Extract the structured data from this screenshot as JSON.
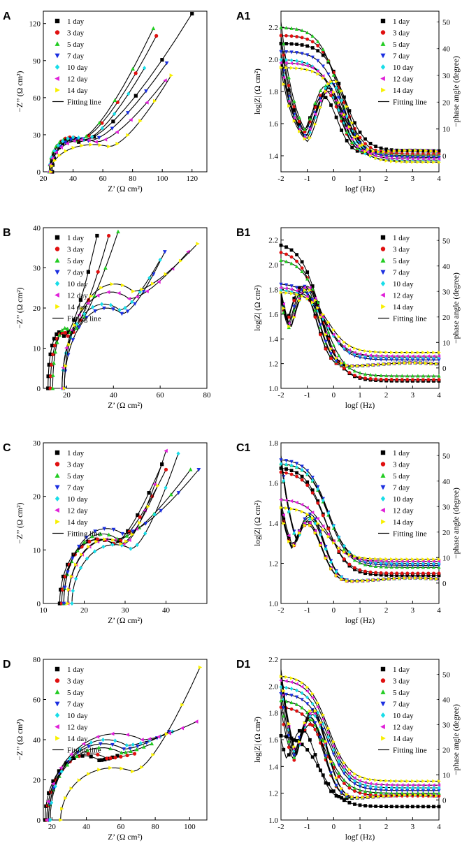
{
  "legend": {
    "entries": [
      "1  day",
      "3  day",
      "5  day",
      "7  day",
      "10  day",
      "12  day",
      "14  day"
    ],
    "fitting": "Fitting line"
  },
  "series_style": [
    {
      "color": "#000000",
      "marker": "square"
    },
    {
      "color": "#e01010",
      "marker": "circle"
    },
    {
      "color": "#22cc22",
      "marker": "triangle-up"
    },
    {
      "color": "#1a2ee0",
      "marker": "triangle-down"
    },
    {
      "color": "#18dde8",
      "marker": "diamond"
    },
    {
      "color": "#e020d8",
      "marker": "triangle-left"
    },
    {
      "color": "#f8f000",
      "marker": "triangle-right"
    }
  ],
  "chart_data": [
    {
      "id": "A",
      "label": "A",
      "type": "scatter",
      "kind": "nyquist",
      "xlabel": "Z’ (Ω cm²)",
      "ylabel": "−Z’’ (Ω cm²)",
      "xlim": [
        20,
        130
      ],
      "ylim": [
        0,
        130
      ],
      "xticks": [
        20,
        40,
        60,
        80,
        100,
        120
      ],
      "yticks": [
        0,
        30,
        60,
        90,
        120
      ],
      "series": [
        {
          "name": "1 day",
          "r0": 26,
          "r1": 52,
          "arc": 26,
          "tailx": 120,
          "taily": 128
        },
        {
          "name": "3 day",
          "r0": 25,
          "r1": 52,
          "arc": 28,
          "tailx": 96,
          "taily": 110
        },
        {
          "name": "5 day",
          "r0": 24,
          "r1": 50,
          "arc": 27,
          "tailx": 94,
          "taily": 116
        },
        {
          "name": "7 day",
          "r0": 25,
          "r1": 62,
          "arc": 27,
          "tailx": 103,
          "taily": 88
        },
        {
          "name": "10 day",
          "r0": 24,
          "r1": 58,
          "arc": 28,
          "tailx": 88,
          "taily": 84
        },
        {
          "name": "12 day",
          "r0": 24,
          "r1": 70,
          "arc": 26,
          "tailx": 102,
          "taily": 74
        },
        {
          "name": "14 day",
          "r0": 25,
          "r1": 82,
          "arc": 22,
          "tailx": 106,
          "taily": 78
        }
      ]
    },
    {
      "id": "A1",
      "label": "A1",
      "type": "line",
      "kind": "bode",
      "xlabel": "logf (Hz)",
      "ylabel": "log|Z| (Ω cm²)",
      "y2label": "−phase angle (degree)",
      "xlim": [
        -2,
        4
      ],
      "ylim": [
        1.3,
        2.3
      ],
      "y2lim": [
        -6,
        54
      ],
      "xticks": [
        -2,
        -1,
        0,
        1,
        2,
        3,
        4
      ],
      "yticks": [
        1.4,
        1.6,
        1.8,
        2.0,
        2.2
      ],
      "y2ticks": [
        0,
        10,
        20,
        30,
        40,
        50
      ],
      "series": [
        {
          "name": "1 day",
          "zlow": 2.1,
          "zhigh": 1.43,
          "fc": 0.4,
          "p0": 42,
          "pk": 22,
          "pkf": -0.4
        },
        {
          "name": "3 day",
          "zlow": 2.15,
          "zhigh": 1.41,
          "fc": 0.3,
          "p0": 45,
          "pk": 24,
          "pkf": -0.3
        },
        {
          "name": "5 day",
          "zlow": 2.2,
          "zhigh": 1.4,
          "fc": 0.2,
          "p0": 50,
          "pk": 26,
          "pkf": -0.3
        },
        {
          "name": "7 day",
          "zlow": 2.05,
          "zhigh": 1.39,
          "fc": 0.3,
          "p0": 38,
          "pk": 25,
          "pkf": -0.2
        },
        {
          "name": "10 day",
          "zlow": 2.0,
          "zhigh": 1.37,
          "fc": 0.2,
          "p0": 36,
          "pk": 27,
          "pkf": -0.1
        },
        {
          "name": "12 day",
          "zlow": 1.98,
          "zhigh": 1.38,
          "fc": 0.3,
          "p0": 35,
          "pk": 24,
          "pkf": -0.2
        },
        {
          "name": "14 day",
          "zlow": 1.95,
          "zhigh": 1.36,
          "fc": 0.4,
          "p0": 32,
          "pk": 28,
          "pkf": 0.0
        }
      ]
    },
    {
      "id": "B",
      "label": "B",
      "type": "scatter",
      "kind": "nyquist",
      "xlabel": "Z’ (Ω cm²)",
      "ylabel": "−Z’’ (Ω cm²)",
      "xlim": [
        10,
        80
      ],
      "ylim": [
        0,
        40
      ],
      "xticks": [
        20,
        40,
        60,
        80
      ],
      "yticks": [
        0,
        10,
        20,
        30,
        40
      ],
      "series": [
        {
          "name": "1 day",
          "r0": 12,
          "r1": 22,
          "arc": 14,
          "tailx": 33,
          "taily": 38
        },
        {
          "name": "3 day",
          "r0": 13,
          "r1": 24,
          "arc": 14,
          "tailx": 38,
          "taily": 38
        },
        {
          "name": "5 day",
          "r0": 14,
          "r1": 25,
          "arc": 15,
          "tailx": 42,
          "taily": 39
        },
        {
          "name": "7 day",
          "r0": 19,
          "r1": 55,
          "arc": 20,
          "tailx": 62,
          "taily": 34
        },
        {
          "name": "10 day",
          "r0": 18,
          "r1": 54,
          "arc": 21,
          "tailx": 60,
          "taily": 32
        },
        {
          "name": "12 day",
          "r0": 18,
          "r1": 60,
          "arc": 24,
          "tailx": 72,
          "taily": 34
        },
        {
          "name": "14 day",
          "r0": 19,
          "r1": 62,
          "arc": 26,
          "tailx": 76,
          "taily": 36
        }
      ]
    },
    {
      "id": "B1",
      "label": "B1",
      "type": "line",
      "kind": "bode",
      "xlabel": "logf (Hz)",
      "ylabel": "log|Z| (Ω cm²)",
      "y2label": "−phase angle (degree)",
      "xlim": [
        -2,
        4
      ],
      "ylim": [
        1.0,
        2.3
      ],
      "y2lim": [
        -8,
        55
      ],
      "xticks": [
        -2,
        -1,
        0,
        1,
        2,
        3,
        4
      ],
      "yticks": [
        1.0,
        1.2,
        1.4,
        1.6,
        1.8,
        2.0,
        2.2
      ],
      "y2ticks": [
        0,
        10,
        20,
        30,
        40,
        50
      ],
      "series": [
        {
          "name": "1 day",
          "zlow": 2.18,
          "zhigh": 1.06,
          "fc": -0.5,
          "p0": 28,
          "pk": 32,
          "pkf": -1.2
        },
        {
          "name": "3 day",
          "zlow": 2.12,
          "zhigh": 1.07,
          "fc": -0.5,
          "p0": 27,
          "pk": 31,
          "pkf": -1.2
        },
        {
          "name": "5 day",
          "zlow": 2.05,
          "zhigh": 1.1,
          "fc": -0.4,
          "p0": 26,
          "pk": 30,
          "pkf": -1.1
        },
        {
          "name": "7 day",
          "zlow": 1.85,
          "zhigh": 1.23,
          "fc": -0.3,
          "p0": 30,
          "pk": 32,
          "pkf": -1.1
        },
        {
          "name": "10 day",
          "zlow": 1.8,
          "zhigh": 1.25,
          "fc": -0.3,
          "p0": 29,
          "pk": 31,
          "pkf": -1.0
        },
        {
          "name": "12 day",
          "zlow": 1.82,
          "zhigh": 1.26,
          "fc": -0.3,
          "p0": 30,
          "pk": 32,
          "pkf": -1.0
        },
        {
          "name": "14 day",
          "zlow": 1.78,
          "zhigh": 1.29,
          "fc": -0.2,
          "p0": 28,
          "pk": 31,
          "pkf": -1.0
        }
      ]
    },
    {
      "id": "C",
      "label": "C",
      "type": "scatter",
      "kind": "nyquist",
      "xlabel": "Z’ (Ω cm²)",
      "ylabel": "−Z’’ (Ω cm²)",
      "xlim": [
        10,
        50
      ],
      "ylim": [
        0,
        30
      ],
      "xticks": [
        10,
        20,
        30,
        40
      ],
      "yticks": [
        0,
        10,
        20,
        30
      ],
      "series": [
        {
          "name": "1 day",
          "r0": 14,
          "r1": 33,
          "arc": 12,
          "tailx": 39,
          "taily": 26
        },
        {
          "name": "3 day",
          "r0": 14.5,
          "r1": 33,
          "arc": 12,
          "tailx": 40,
          "taily": 25
        },
        {
          "name": "5 day",
          "r0": 15,
          "r1": 34,
          "arc": 13,
          "tailx": 46,
          "taily": 25
        },
        {
          "name": "7 day",
          "r0": 15,
          "r1": 36,
          "arc": 14,
          "tailx": 48,
          "taily": 25
        },
        {
          "name": "10 day",
          "r0": 17,
          "r1": 38,
          "arc": 11,
          "tailx": 43,
          "taily": 28
        },
        {
          "name": "12 day",
          "r0": 16,
          "r1": 36,
          "arc": 12,
          "tailx": 40,
          "taily": 28.5
        },
        {
          "name": "14 day",
          "r0": 16,
          "r1": 35,
          "arc": 12,
          "tailx": 38,
          "taily": 22
        }
      ]
    },
    {
      "id": "C1",
      "label": "C1",
      "type": "line",
      "kind": "bode",
      "xlabel": "logf (Hz)",
      "ylabel": "log|Z| (Ω cm²)",
      "y2label": "−phase angle (degree)",
      "xlim": [
        -2,
        4
      ],
      "ylim": [
        1.0,
        1.8
      ],
      "y2lim": [
        -8,
        55
      ],
      "xticks": [
        -2,
        -1,
        0,
        1,
        2,
        3,
        4
      ],
      "yticks": [
        1.0,
        1.2,
        1.4,
        1.6,
        1.8
      ],
      "y2ticks": [
        0,
        10,
        20,
        30,
        40,
        50
      ],
      "series": [
        {
          "name": "1 day",
          "zlow": 1.68,
          "zhigh": 1.14,
          "fc": -0.3,
          "p0": 30,
          "pk": 24,
          "pkf": -1.0
        },
        {
          "name": "3 day",
          "zlow": 1.66,
          "zhigh": 1.15,
          "fc": -0.3,
          "p0": 29,
          "pk": 23,
          "pkf": -1.0
        },
        {
          "name": "5 day",
          "zlow": 1.7,
          "zhigh": 1.18,
          "fc": -0.2,
          "p0": 48,
          "pk": 26,
          "pkf": -0.9
        },
        {
          "name": "7 day",
          "zlow": 1.72,
          "zhigh": 1.19,
          "fc": -0.2,
          "p0": 50,
          "pk": 27,
          "pkf": -0.9
        },
        {
          "name": "10 day",
          "zlow": 1.7,
          "zhigh": 1.2,
          "fc": -0.2,
          "p0": 48,
          "pk": 25,
          "pkf": -0.9
        },
        {
          "name": "12 day",
          "zlow": 1.52,
          "zhigh": 1.21,
          "fc": -0.3,
          "p0": 32,
          "pk": 24,
          "pkf": -1.0
        },
        {
          "name": "14 day",
          "zlow": 1.48,
          "zhigh": 1.22,
          "fc": -0.3,
          "p0": 28,
          "pk": 23,
          "pkf": -1.0
        }
      ]
    },
    {
      "id": "D",
      "label": "D",
      "type": "scatter",
      "kind": "nyquist",
      "xlabel": "Z’ (Ω cm²)",
      "ylabel": "−Z’’ (Ω cm²)",
      "xlim": [
        15,
        110
      ],
      "ylim": [
        0,
        80
      ],
      "xticks": [
        20,
        40,
        60,
        80,
        100
      ],
      "yticks": [
        0,
        20,
        40,
        60,
        80
      ],
      "series": [
        {
          "name": "1 day",
          "r0": 16,
          "r1": 62,
          "arc": 32,
          "tailx": 58,
          "taily": 32
        },
        {
          "name": "3 day",
          "r0": 17,
          "r1": 68,
          "arc": 33,
          "tailx": 68,
          "taily": 33
        },
        {
          "name": "5 day",
          "r0": 18,
          "r1": 80,
          "arc": 36,
          "tailx": 78,
          "taily": 38
        },
        {
          "name": "7 day",
          "r0": 18,
          "r1": 82,
          "arc": 38,
          "tailx": 88,
          "taily": 44
        },
        {
          "name": "10 day",
          "r0": 19,
          "r1": 84,
          "arc": 40,
          "tailx": 90,
          "taily": 44
        },
        {
          "name": "12 day",
          "r0": 17,
          "r1": 98,
          "arc": 43,
          "tailx": 104,
          "taily": 49
        },
        {
          "name": "14 day",
          "r0": 25,
          "r1": 86,
          "arc": 26,
          "tailx": 106,
          "taily": 76
        }
      ]
    },
    {
      "id": "D1",
      "label": "D1",
      "type": "line",
      "kind": "bode",
      "xlabel": "logf (Hz)",
      "ylabel": "log|Z| (Ω cm²)",
      "y2label": "−phase angle (degree)",
      "xlim": [
        -2,
        4
      ],
      "ylim": [
        1.0,
        2.2
      ],
      "y2lim": [
        -8,
        56
      ],
      "xticks": [
        -2,
        -1,
        0,
        1,
        2,
        3,
        4
      ],
      "yticks": [
        1.0,
        1.2,
        1.4,
        1.6,
        1.8,
        2.0,
        2.2
      ],
      "y2ticks": [
        0,
        10,
        20,
        30,
        40,
        50
      ],
      "series": [
        {
          "name": "1 day",
          "zlow": 1.64,
          "zhigh": 1.1,
          "fc": -0.5,
          "p0": 24,
          "pk": 28,
          "pkf": -1.2
        },
        {
          "name": "3 day",
          "zlow": 1.85,
          "zhigh": 1.18,
          "fc": -0.3,
          "p0": 36,
          "pk": 30,
          "pkf": -0.9
        },
        {
          "name": "5 day",
          "zlow": 1.9,
          "zhigh": 1.2,
          "fc": -0.3,
          "p0": 40,
          "pk": 32,
          "pkf": -0.9
        },
        {
          "name": "7 day",
          "zlow": 1.95,
          "zhigh": 1.22,
          "fc": -0.2,
          "p0": 44,
          "pk": 33,
          "pkf": -0.9
        },
        {
          "name": "10 day",
          "zlow": 2.0,
          "zhigh": 1.24,
          "fc": -0.2,
          "p0": 48,
          "pk": 34,
          "pkf": -0.8
        },
        {
          "name": "12 day",
          "zlow": 2.05,
          "zhigh": 1.26,
          "fc": -0.2,
          "p0": 50,
          "pk": 35,
          "pkf": -0.8
        },
        {
          "name": "14 day",
          "zlow": 2.08,
          "zhigh": 1.29,
          "fc": -0.2,
          "p0": 52,
          "pk": 36,
          "pkf": -0.8
        }
      ]
    }
  ]
}
